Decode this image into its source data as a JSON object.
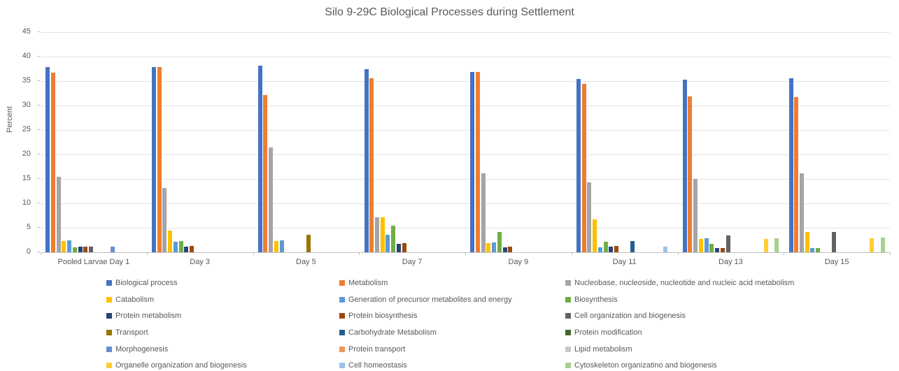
{
  "chart_data": {
    "type": "bar",
    "title": "Silo 9-29C Biological Processes during Settlement",
    "xlabel": "",
    "ylabel": "Percent",
    "ylim": [
      0,
      45
    ],
    "ytick_step": 5,
    "grid": true,
    "legend_position": "bottom",
    "legend_columns": 3,
    "categories": [
      "Pooled Larvae Day 1",
      "Day 3",
      "Day 5",
      "Day 7",
      "Day 9",
      "Day 11",
      "Day 13",
      "Day 15"
    ],
    "series": [
      {
        "name": "Biological process",
        "color": "#4472C4",
        "values": [
          37.8,
          37.8,
          38.1,
          37.5,
          36.8,
          35.4,
          35.3,
          35.6
        ]
      },
      {
        "name": "Metabolism",
        "color": "#ED7D31",
        "values": [
          36.7,
          37.9,
          32.1,
          35.6,
          36.9,
          34.4,
          31.8,
          31.7
        ]
      },
      {
        "name": "Nucleobase, nucleoside, nucleotide and nucleic acid metabolism",
        "color": "#A5A5A5",
        "values": [
          15.5,
          13.2,
          21.4,
          7.1,
          16.2,
          14.3,
          15.0,
          16.1
        ]
      },
      {
        "name": "Catabolism",
        "color": "#FFC000",
        "values": [
          2.3,
          4.4,
          2.3,
          7.2,
          1.9,
          6.7,
          2.7,
          4.2
        ]
      },
      {
        "name": "Generation of precursor metabolites and energy",
        "color": "#5B9BD5",
        "values": [
          2.4,
          2.2,
          2.4,
          3.6,
          2.0,
          1.0,
          2.8,
          0.9
        ]
      },
      {
        "name": "Biosynthesis",
        "color": "#70AD47",
        "values": [
          1.0,
          2.3,
          0,
          5.4,
          4.1,
          2.1,
          1.7,
          0.9
        ]
      },
      {
        "name": "Protein metabolism",
        "color": "#264478",
        "values": [
          1.2,
          1.1,
          0,
          1.7,
          1.0,
          1.2,
          0.9,
          0
        ]
      },
      {
        "name": "Protein biosynthesis",
        "color": "#9E480E",
        "values": [
          1.2,
          1.3,
          0,
          1.8,
          1.1,
          1.3,
          0.9,
          0
        ]
      },
      {
        "name": "Cell organization and biogenesis",
        "color": "#636363",
        "values": [
          1.2,
          0,
          0,
          0,
          0,
          0,
          3.5,
          4.2
        ]
      },
      {
        "name": "Transport",
        "color": "#997300",
        "values": [
          0,
          0,
          3.6,
          0,
          0,
          0,
          0,
          0
        ]
      },
      {
        "name": "Carbohydrate Metabolism",
        "color": "#255E91",
        "values": [
          0,
          0,
          0,
          0,
          0,
          2.3,
          0,
          0
        ]
      },
      {
        "name": "Protein modification",
        "color": "#43682B",
        "values": [
          0,
          0,
          0,
          0,
          0,
          0,
          0,
          0
        ]
      },
      {
        "name": "Morphogenesis",
        "color": "#698ED0",
        "values": [
          1.1,
          0,
          0,
          0,
          0,
          0,
          0,
          0
        ]
      },
      {
        "name": "Protein transport",
        "color": "#F1975A",
        "values": [
          0,
          0,
          0,
          0,
          0,
          0,
          0,
          0
        ]
      },
      {
        "name": "Lipid metabolism",
        "color": "#C9C9C9",
        "values": [
          0,
          0,
          0,
          0,
          0,
          0,
          0,
          0
        ]
      },
      {
        "name": "Organelle organization and biogenesis",
        "color": "#FFCD33",
        "values": [
          0,
          0,
          0,
          0,
          0,
          0,
          2.7,
          2.8
        ]
      },
      {
        "name": "Cell homeostasis",
        "color": "#9DC3E6",
        "values": [
          0,
          0,
          0,
          0,
          0,
          1.1,
          0,
          0
        ]
      },
      {
        "name": "Cytoskeleton organizatino and biogenesis",
        "color": "#A9D18E",
        "values": [
          0,
          0,
          0,
          0,
          0,
          0,
          2.8,
          3.0
        ]
      }
    ]
  }
}
